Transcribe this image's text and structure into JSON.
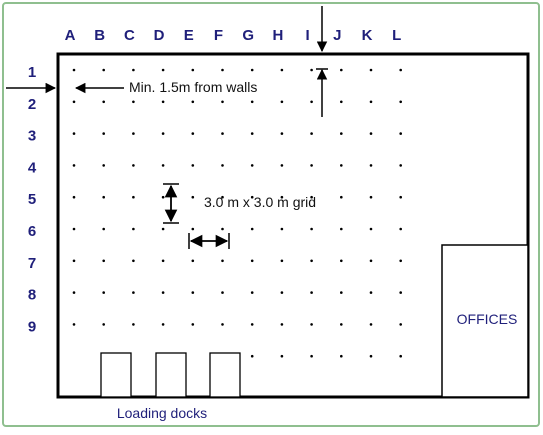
{
  "diagram": {
    "columns": [
      "A",
      "B",
      "C",
      "D",
      "E",
      "F",
      "G",
      "H",
      "I",
      "J",
      "K",
      "L"
    ],
    "rows": [
      "1",
      "2",
      "3",
      "4",
      "5",
      "6",
      "7",
      "8",
      "9"
    ],
    "wall_note": "Min. 1.5m from walls",
    "grid_note": "3.0 m x 3.0 m grid",
    "offices_label": "OFFICES",
    "docks_label": "Loading docks",
    "dock_count": 3,
    "colors": {
      "labels": "#1f1f7a",
      "lines": "#000000",
      "frame_shadow": "#8fbf8f"
    }
  }
}
